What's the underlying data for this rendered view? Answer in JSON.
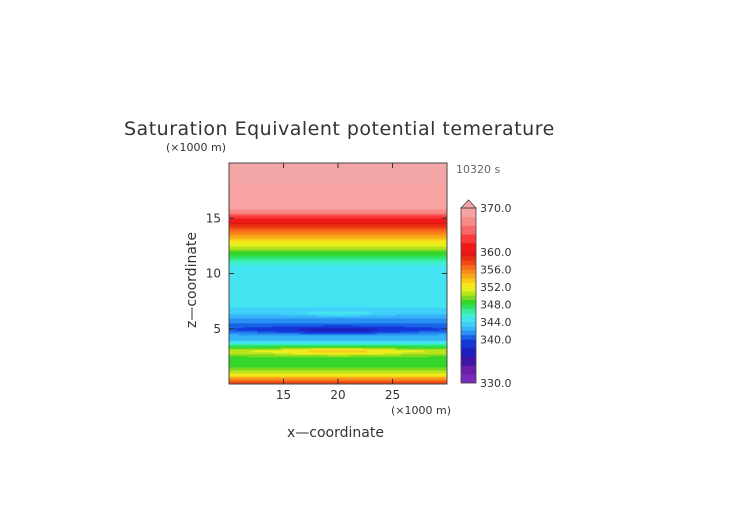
{
  "chart_data": {
    "type": "heatmap",
    "title": "Saturation Equivalent potential temerature",
    "time_label": "10320 s",
    "xlabel": "x—coordinate",
    "ylabel": "z—coordinate",
    "x_unit": "(×1000 m)",
    "y_unit": "(×1000 m)",
    "xlim": [
      10,
      30
    ],
    "ylim": [
      0,
      20
    ],
    "x_ticks": [
      15,
      20,
      25
    ],
    "y_ticks": [
      5,
      10,
      15
    ],
    "grid": false,
    "colorbar": {
      "min": 330,
      "max": 370,
      "labels": [
        "370.0",
        "360.0",
        "356.0",
        "352.0",
        "348.0",
        "344.0",
        "340.0",
        "330.0"
      ],
      "label_values": [
        370,
        360,
        356,
        352,
        348,
        344,
        340,
        330
      ],
      "levels": [
        {
          "from": 330,
          "to": 332,
          "color": "#7a2bbd"
        },
        {
          "from": 332,
          "to": 334,
          "color": "#6a1fa8"
        },
        {
          "from": 334,
          "to": 336,
          "color": "#3f16a8"
        },
        {
          "from": 336,
          "to": 338,
          "color": "#1f1fbe"
        },
        {
          "from": 338,
          "to": 340,
          "color": "#1438d8"
        },
        {
          "from": 340,
          "to": 341,
          "color": "#1862e8"
        },
        {
          "from": 341,
          "to": 342,
          "color": "#2a8ff2"
        },
        {
          "from": 342,
          "to": 343,
          "color": "#35b4f6"
        },
        {
          "from": 343,
          "to": 344,
          "color": "#3fd0f8"
        },
        {
          "from": 344,
          "to": 345,
          "color": "#44e3f2"
        },
        {
          "from": 345,
          "to": 346,
          "color": "#3ff0d0"
        },
        {
          "from": 346,
          "to": 347,
          "color": "#34ec9a"
        },
        {
          "from": 347,
          "to": 348,
          "color": "#2fe05c"
        },
        {
          "from": 348,
          "to": 349,
          "color": "#34d62a"
        },
        {
          "from": 349,
          "to": 350,
          "color": "#7ad820"
        },
        {
          "from": 350,
          "to": 351,
          "color": "#b8e41c"
        },
        {
          "from": 351,
          "to": 352,
          "color": "#e6f01e"
        },
        {
          "from": 352,
          "to": 353,
          "color": "#f6e61a"
        },
        {
          "from": 353,
          "to": 354,
          "color": "#f8c81a"
        },
        {
          "from": 354,
          "to": 355,
          "color": "#f8a818"
        },
        {
          "from": 355,
          "to": 356,
          "color": "#f88a18"
        },
        {
          "from": 356,
          "to": 357,
          "color": "#f86a18"
        },
        {
          "from": 357,
          "to": 358,
          "color": "#f24a16"
        },
        {
          "from": 358,
          "to": 359,
          "color": "#ea2e14"
        },
        {
          "from": 359,
          "to": 360,
          "color": "#e01a12"
        },
        {
          "from": 360,
          "to": 362,
          "color": "#f01818"
        },
        {
          "from": 362,
          "to": 364,
          "color": "#f83a3a"
        },
        {
          "from": 364,
          "to": 366,
          "color": "#f86868"
        },
        {
          "from": 366,
          "to": 368,
          "color": "#f88a8a"
        },
        {
          "from": 368,
          "to": 370,
          "color": "#f8a2a2"
        }
      ],
      "over_color": "#f4a6a6"
    },
    "profile": {
      "z": [
        0.0,
        0.5,
        1.0,
        1.5,
        2.0,
        2.5,
        3.0,
        3.5,
        4.0,
        4.5,
        5.0,
        5.5,
        6.0,
        6.5,
        7.0,
        8.0,
        9.0,
        10.0,
        10.5,
        11.0,
        11.5,
        12.0,
        12.5,
        13.0,
        13.5,
        14.0,
        14.5,
        15.0,
        15.5,
        16.0,
        20.0
      ],
      "theta": [
        359,
        355,
        351,
        349,
        348,
        349,
        351,
        347,
        343,
        342,
        340,
        341,
        342,
        343.5,
        344,
        344,
        344,
        344,
        344.5,
        345.5,
        347.5,
        349,
        351,
        353,
        355,
        357,
        359,
        362,
        366,
        369,
        371
      ]
    },
    "anomalies": [
      {
        "x": 20,
        "z": 4.9,
        "dx": 5.8,
        "dz": 0.3,
        "delta": -3.5
      },
      {
        "x": 20,
        "z": 3.0,
        "dx": 5.0,
        "dz": 0.35,
        "delta": 3.0
      },
      {
        "x": 20,
        "z": 6.4,
        "dx": 3.5,
        "dz": 0.2,
        "delta": 1.6
      }
    ]
  }
}
